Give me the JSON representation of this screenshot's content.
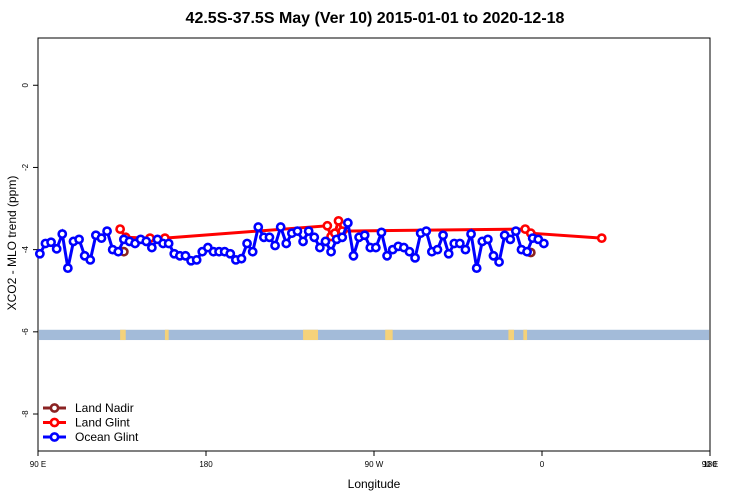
{
  "chart_data": {
    "type": "line",
    "title": "42.5S-37.5S May (Ver 10)   2015-01-01 to 2020-12-18",
    "xlabel": "Longitude",
    "ylabel": "XCO2 - MLO trend (ppm)",
    "xlim": [
      90,
      450
    ],
    "ylim": [
      -8.9,
      1.15
    ],
    "x_tick_values": [
      90,
      180,
      270,
      360,
      450
    ],
    "x_tick_labels": [
      "90 E",
      "180",
      "90 W",
      "0",
      "90 E",
      "180"
    ],
    "x_tick_positions": [
      90,
      180,
      270,
      360,
      450,
      540
    ],
    "y_tick_values": [
      0,
      -2,
      -4,
      -6,
      -8
    ],
    "y_tick_labels": [
      "0",
      "-2",
      "-4",
      "-6",
      "-8"
    ],
    "grid": false,
    "legend_position": "bottom-left",
    "surface_band": {
      "y_range": [
        -6.2,
        -5.95
      ],
      "ocean_color": "#a3bbd9",
      "land_color": "#f5d27a",
      "land_x": [
        [
          134,
          137
        ],
        [
          158,
          160
        ],
        [
          232,
          240
        ],
        [
          276,
          280
        ],
        [
          342,
          345
        ],
        [
          350,
          352
        ]
      ]
    },
    "series": [
      {
        "name": "Land Nadir",
        "color": "#8b2323",
        "points": [
          [
            136,
            -4.05
          ],
          [
            354,
            -4.07
          ]
        ]
      },
      {
        "name": "Land Glint",
        "color": "#ff0000",
        "points": [
          [
            134,
            -3.5
          ],
          [
            137,
            -3.7
          ],
          [
            150,
            -3.72
          ],
          [
            158,
            -3.72
          ],
          [
            245,
            -3.42
          ],
          [
            247,
            -3.68
          ],
          [
            249,
            -3.6
          ],
          [
            251,
            -3.3
          ],
          [
            253,
            -3.55
          ],
          [
            351,
            -3.5
          ],
          [
            354,
            -3.6
          ],
          [
            392,
            -3.72
          ]
        ]
      },
      {
        "name": "Ocean Glint",
        "color": "#0000ff",
        "points": [
          [
            91,
            -4.1
          ],
          [
            94,
            -3.85
          ],
          [
            97,
            -3.82
          ],
          [
            100,
            -3.98
          ],
          [
            103,
            -3.62
          ],
          [
            106,
            -4.45
          ],
          [
            109,
            -3.8
          ],
          [
            112,
            -3.75
          ],
          [
            115,
            -4.15
          ],
          [
            118,
            -4.25
          ],
          [
            121,
            -3.65
          ],
          [
            124,
            -3.72
          ],
          [
            127,
            -3.55
          ],
          [
            130,
            -4.0
          ],
          [
            133,
            -4.05
          ],
          [
            136,
            -3.75
          ],
          [
            139,
            -3.8
          ],
          [
            142,
            -3.85
          ],
          [
            145,
            -3.75
          ],
          [
            148,
            -3.8
          ],
          [
            151,
            -3.95
          ],
          [
            154,
            -3.75
          ],
          [
            157,
            -3.85
          ],
          [
            160,
            -3.85
          ],
          [
            163,
            -4.1
          ],
          [
            166,
            -4.15
          ],
          [
            169,
            -4.15
          ],
          [
            172,
            -4.27
          ],
          [
            175,
            -4.25
          ],
          [
            178,
            -4.05
          ],
          [
            181,
            -3.95
          ],
          [
            184,
            -4.05
          ],
          [
            187,
            -4.05
          ],
          [
            190,
            -4.05
          ],
          [
            193,
            -4.1
          ],
          [
            196,
            -4.25
          ],
          [
            199,
            -4.22
          ],
          [
            202,
            -3.85
          ],
          [
            205,
            -4.05
          ],
          [
            208,
            -3.45
          ],
          [
            211,
            -3.7
          ],
          [
            214,
            -3.7
          ],
          [
            217,
            -3.9
          ],
          [
            220,
            -3.45
          ],
          [
            223,
            -3.85
          ],
          [
            226,
            -3.6
          ],
          [
            229,
            -3.55
          ],
          [
            232,
            -3.8
          ],
          [
            235,
            -3.55
          ],
          [
            238,
            -3.7
          ],
          [
            241,
            -3.95
          ],
          [
            244,
            -3.8
          ],
          [
            247,
            -4.05
          ],
          [
            250,
            -3.75
          ],
          [
            253,
            -3.7
          ],
          [
            256,
            -3.35
          ],
          [
            259,
            -4.15
          ],
          [
            262,
            -3.7
          ],
          [
            265,
            -3.65
          ],
          [
            268,
            -3.95
          ],
          [
            271,
            -3.95
          ],
          [
            274,
            -3.58
          ],
          [
            277,
            -4.15
          ],
          [
            280,
            -4.0
          ],
          [
            283,
            -3.92
          ],
          [
            286,
            -3.95
          ],
          [
            289,
            -4.05
          ],
          [
            292,
            -4.2
          ],
          [
            295,
            -3.6
          ],
          [
            298,
            -3.55
          ],
          [
            301,
            -4.05
          ],
          [
            304,
            -4.0
          ],
          [
            307,
            -3.65
          ],
          [
            310,
            -4.1
          ],
          [
            313,
            -3.85
          ],
          [
            316,
            -3.85
          ],
          [
            319,
            -4.0
          ],
          [
            322,
            -3.62
          ],
          [
            325,
            -4.45
          ],
          [
            328,
            -3.8
          ],
          [
            331,
            -3.75
          ],
          [
            334,
            -4.15
          ],
          [
            337,
            -4.3
          ],
          [
            340,
            -3.65
          ],
          [
            343,
            -3.75
          ],
          [
            346,
            -3.55
          ],
          [
            349,
            -4.0
          ],
          [
            352,
            -4.05
          ],
          [
            355,
            -3.72
          ],
          [
            358,
            -3.75
          ],
          [
            361,
            -3.85
          ]
        ]
      }
    ]
  },
  "legend": {
    "items": [
      {
        "label": "Land Nadir",
        "color": "#8b2323"
      },
      {
        "label": "Land Glint",
        "color": "#ff0000"
      },
      {
        "label": "Ocean Glint",
        "color": "#0000ff"
      }
    ]
  }
}
